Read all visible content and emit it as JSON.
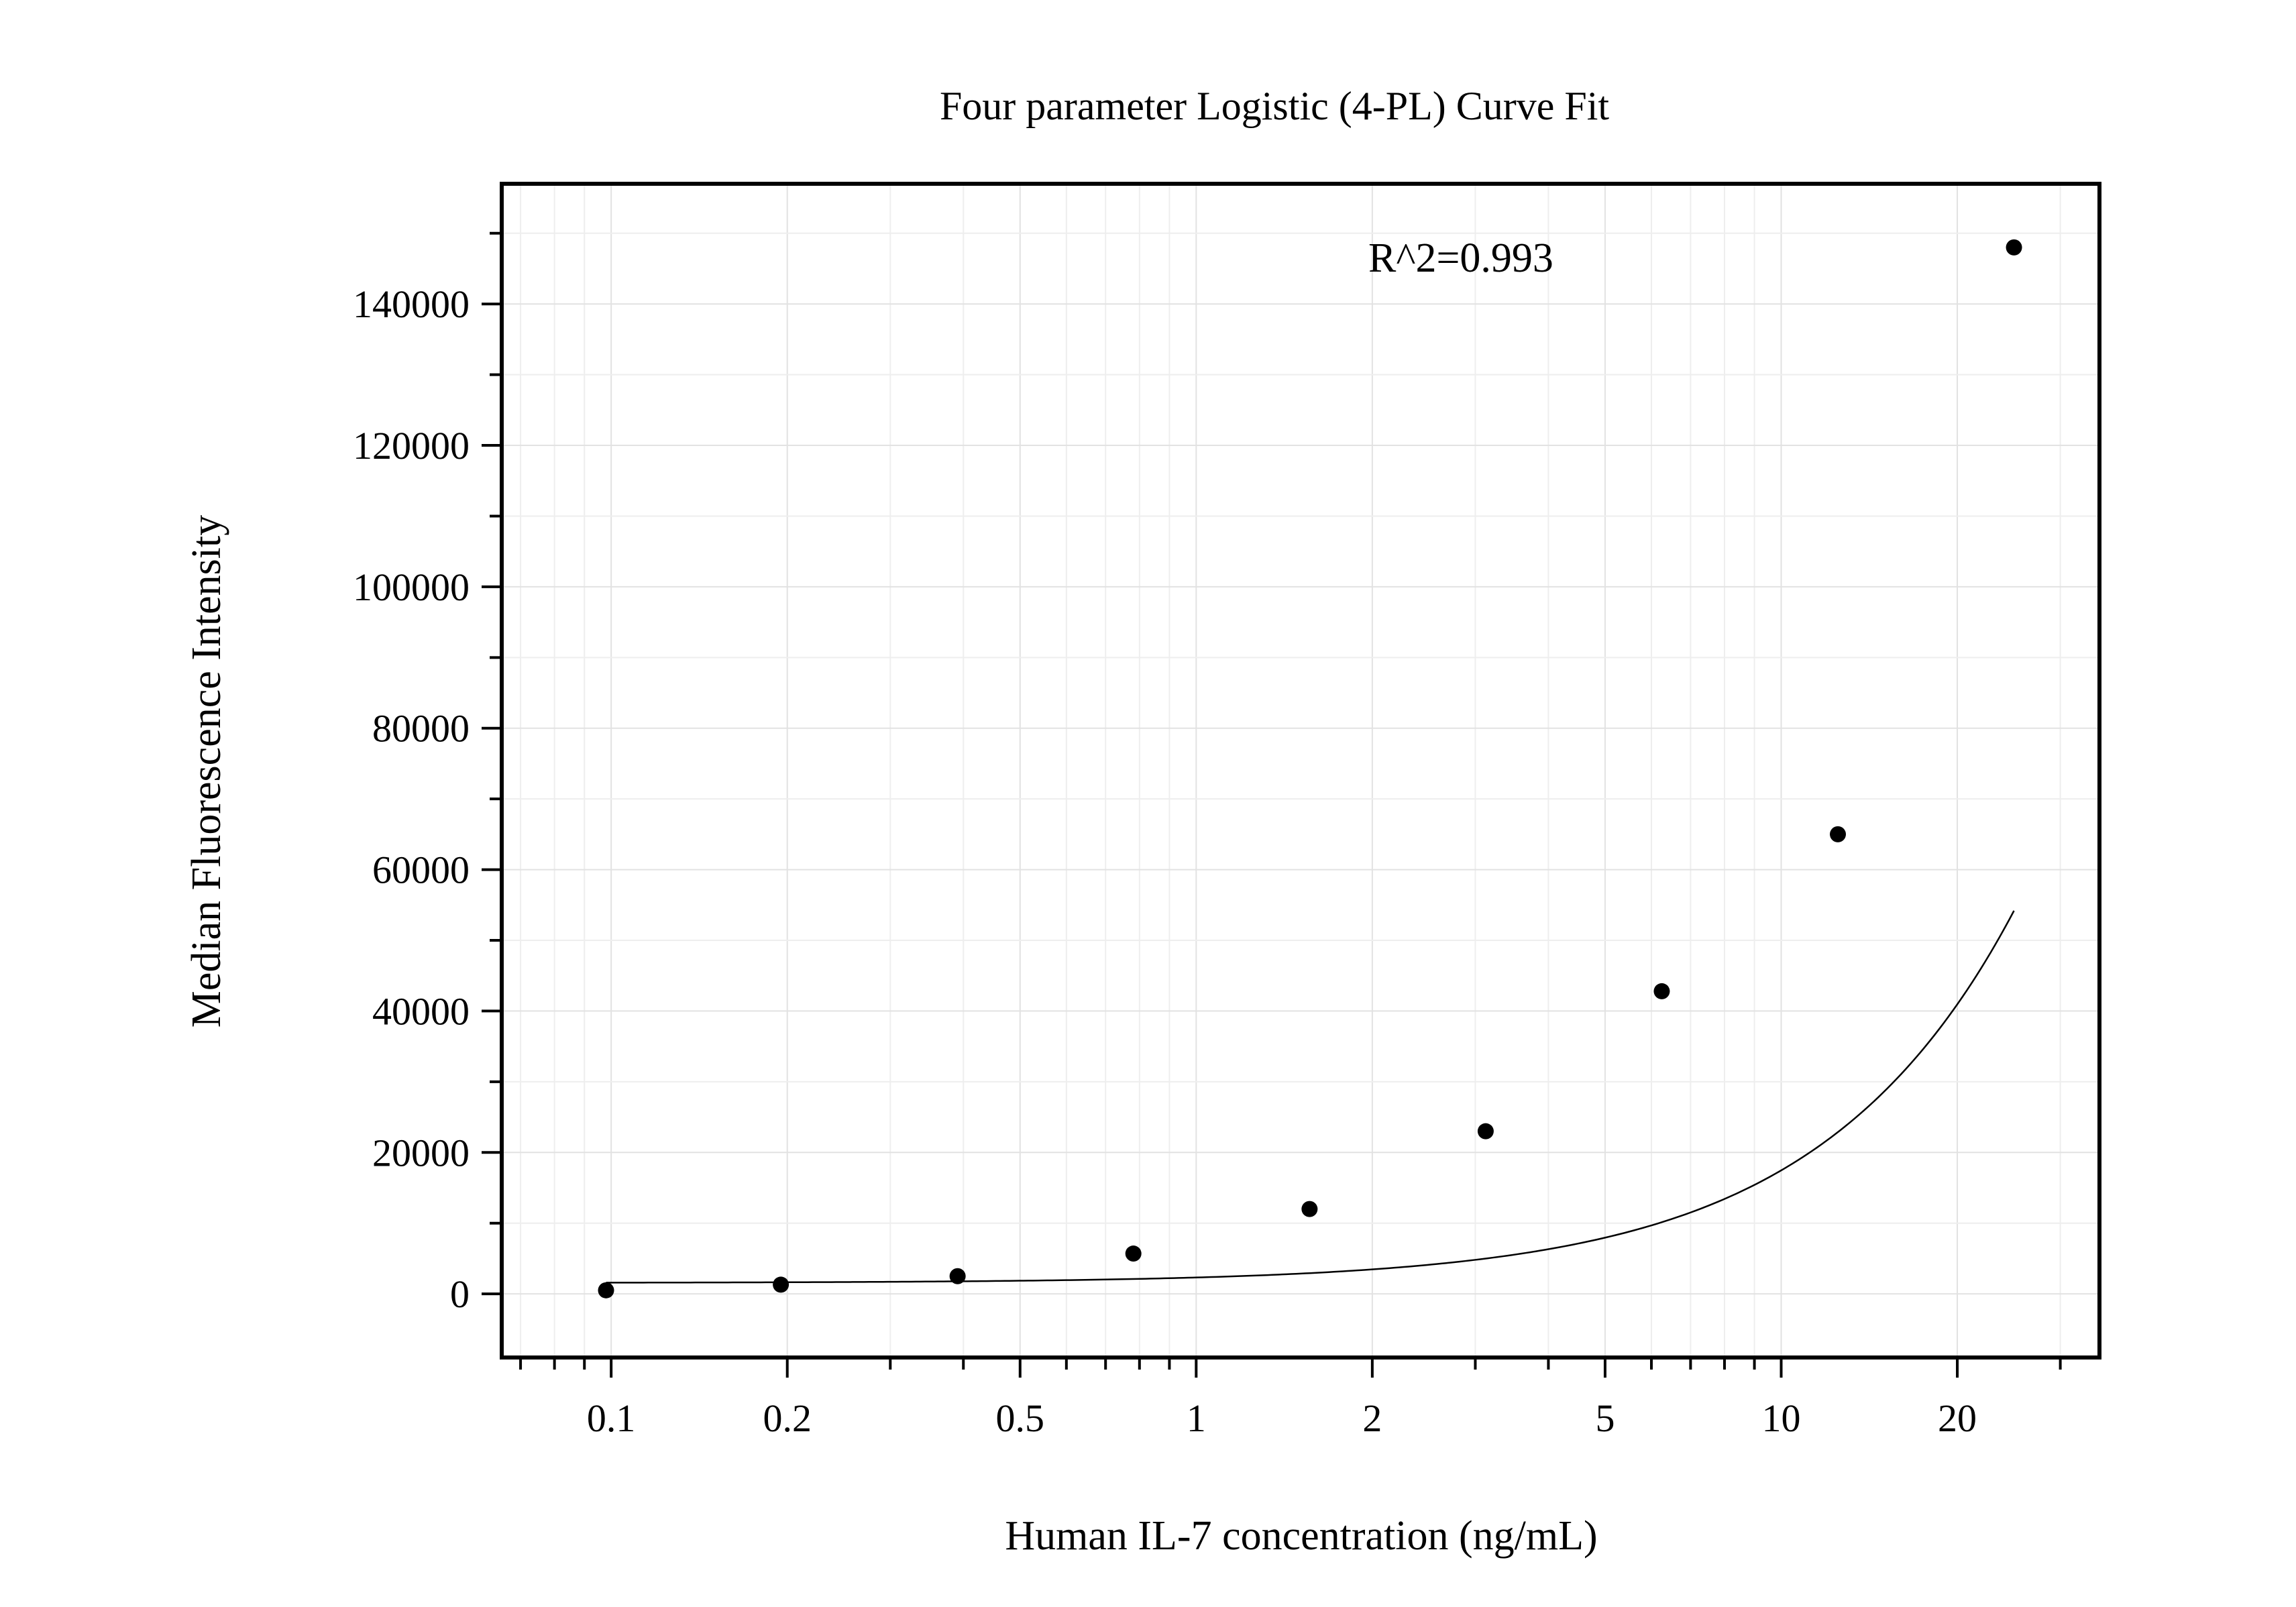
{
  "chart_data": {
    "type": "scatter",
    "title": "Four parameter Logistic (4-PL) Curve Fit",
    "xlabel": "Human IL-7 concentration (ng/mL)",
    "ylabel": "Median Fluorescence Intensity",
    "x_scale": "log",
    "xlim": [
      0.065,
      35
    ],
    "ylim": [
      -9000,
      157000
    ],
    "grid": true,
    "x_ticks": [
      {
        "value": 0.1,
        "label": "0.1"
      },
      {
        "value": 0.2,
        "label": "0.2"
      },
      {
        "value": 0.5,
        "label": "0.5"
      },
      {
        "value": 1,
        "label": "1"
      },
      {
        "value": 2,
        "label": "2"
      },
      {
        "value": 5,
        "label": "5"
      },
      {
        "value": 10,
        "label": "10"
      },
      {
        "value": 20,
        "label": "20"
      }
    ],
    "y_ticks": [
      {
        "value": 0,
        "label": "0"
      },
      {
        "value": 20000,
        "label": "20000"
      },
      {
        "value": 40000,
        "label": "40000"
      },
      {
        "value": 60000,
        "label": "60000"
      },
      {
        "value": 80000,
        "label": "80000"
      },
      {
        "value": 100000,
        "label": "100000"
      },
      {
        "value": 120000,
        "label": "120000"
      },
      {
        "value": 140000,
        "label": "140000"
      }
    ],
    "points": {
      "x": [
        0.098,
        0.195,
        0.391,
        0.781,
        1.5625,
        3.125,
        6.25,
        12.5,
        25
      ],
      "y": [
        500,
        1300,
        2500,
        5700,
        12000,
        23000,
        42800,
        65000,
        148000
      ]
    },
    "fit_curve": {
      "model": "4PL",
      "bottom": 1550,
      "top": 2800000,
      "ec50": 500,
      "hill": 1.32,
      "x_range": [
        0.098,
        25
      ]
    },
    "annotation": "R^2=0.993"
  }
}
